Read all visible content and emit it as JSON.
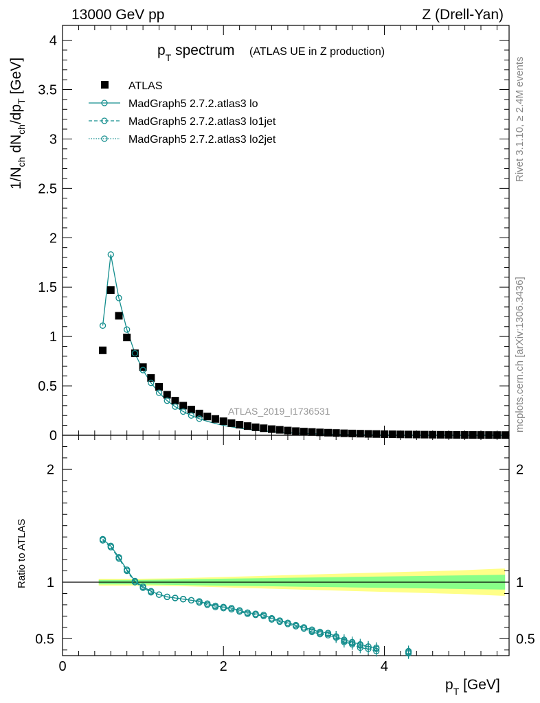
{
  "header": {
    "left": "13000 GeV pp",
    "right": "Z (Drell-Yan)"
  },
  "title": {
    "main_p": "p",
    "main_sub": "T",
    "main_rest": " spectrum",
    "small": "(ATLAS UE in Z production)"
  },
  "side_labels": {
    "rivet": "Rivet 3.1.10, ≥ 2.4M events",
    "mcplots": "mcplots.cern.ch [arXiv:1306.3436]"
  },
  "watermark": "ATLAS_2019_I1736531",
  "axes": {
    "ylabel_main": "1/N_ch dN_ch/dp_T [GeV]",
    "ylabel_ratio": "Ratio to ATLAS",
    "xlabel": "p_T [GeV]",
    "main_ylim": [
      0,
      4.15
    ],
    "main_yticks": [
      "0",
      "0.5",
      "1",
      "1.5",
      "2",
      "2.5",
      "3",
      "3.5",
      "4"
    ],
    "ratio_ylim": [
      0.35,
      2.3
    ],
    "ratio_yticks": [
      "0.5",
      "1",
      "2"
    ],
    "xlim": [
      0,
      5.55
    ],
    "xticks": [
      "0",
      "2",
      "4"
    ]
  },
  "legend": [
    {
      "key": "atlas",
      "label": "ATLAS"
    },
    {
      "key": "lo",
      "label": "MadGraph5 2.7.2.atlas3 lo"
    },
    {
      "key": "lo1jet",
      "label": "MadGraph5 2.7.2.atlas3 lo1jet"
    },
    {
      "key": "lo2jet",
      "label": "MadGraph5 2.7.2.atlas3 lo2jet"
    }
  ],
  "colors": {
    "atlas": "#000000",
    "mc": "#138d8d",
    "band_outer": "#ffff88",
    "band_inner": "#88ff88",
    "side_text": "#888888"
  },
  "chart_data": {
    "type": "scatter",
    "x": [
      0.5,
      0.6,
      0.7,
      0.8,
      0.9,
      1.0,
      1.1,
      1.2,
      1.3,
      1.4,
      1.5,
      1.6,
      1.7,
      1.8,
      1.9,
      2.0,
      2.1,
      2.2,
      2.3,
      2.4,
      2.5,
      2.6,
      2.7,
      2.8,
      2.9,
      3.0,
      3.1,
      3.2,
      3.3,
      3.4,
      3.5,
      3.6,
      3.7,
      3.8,
      3.9,
      4.0,
      4.1,
      4.2,
      4.3,
      4.4,
      4.5,
      4.6,
      4.7,
      4.8,
      4.9,
      5.0,
      5.1,
      5.2,
      5.3,
      5.4,
      5.5
    ],
    "series": [
      {
        "name": "ATLAS",
        "values": [
          0.86,
          1.47,
          1.21,
          0.99,
          0.83,
          0.69,
          0.58,
          0.49,
          0.41,
          0.35,
          0.3,
          0.26,
          0.22,
          0.19,
          0.165,
          0.142,
          0.123,
          0.107,
          0.093,
          0.081,
          0.071,
          0.062,
          0.055,
          0.048,
          0.042,
          0.037,
          0.033,
          0.029,
          0.026,
          0.023,
          0.02,
          0.018,
          0.016,
          0.014,
          0.0125,
          0.011,
          0.0098,
          0.0087,
          0.0078,
          0.007,
          0.0062,
          0.0056,
          0.005,
          0.0045,
          0.004,
          0.0036,
          0.0032,
          0.0029,
          0.0026,
          0.0023,
          0.0021
        ]
      },
      {
        "name": "MadGraph5 2.7.2.atlas3 lo",
        "values": [
          1.11,
          1.83,
          1.39,
          1.07,
          0.83,
          0.66,
          0.53,
          0.43,
          0.35,
          0.29,
          0.24,
          0.2,
          0.168,
          0.141,
          0.119,
          0.1,
          0.085,
          0.072,
          0.061,
          0.052,
          0.044,
          0.037,
          0.031,
          0.026,
          0.022,
          0.019,
          0.016,
          0.0135,
          0.0113,
          0.0095,
          0.008,
          0.0067,
          0.0056,
          0.0047,
          0.004,
          0.0034,
          0.0029,
          0.0024,
          0.002,
          0.0017,
          0.0014,
          0.0012,
          0.001,
          0.0008,
          0.0007,
          0.0006,
          0.0005,
          0.0004,
          0.0004,
          0.0003,
          0.0003
        ]
      }
    ],
    "ratio": {
      "x": [
        0.5,
        0.6,
        0.7,
        0.8,
        0.9,
        1.0,
        1.1,
        1.2,
        1.3,
        1.4,
        1.5,
        1.6,
        1.7,
        1.8,
        1.9,
        2.0,
        2.1,
        2.2,
        2.3,
        2.4,
        2.5,
        2.6,
        2.7,
        2.8,
        2.9,
        3.0,
        3.1,
        3.2,
        3.3,
        3.4,
        3.5,
        3.6,
        3.7,
        3.8,
        3.9,
        4.3
      ],
      "lo": [
        1.38,
        1.32,
        1.22,
        1.11,
        1.01,
        0.96,
        0.92,
        0.89,
        0.87,
        0.86,
        0.85,
        0.84,
        0.83,
        0.81,
        0.79,
        0.78,
        0.77,
        0.75,
        0.73,
        0.72,
        0.71,
        0.68,
        0.66,
        0.64,
        0.62,
        0.6,
        0.58,
        0.56,
        0.55,
        0.52,
        0.49,
        0.47,
        0.45,
        0.43,
        0.42,
        0.38
      ],
      "lo1jet": [
        1.37,
        1.31,
        1.21,
        1.1,
        1.0,
        0.95,
        0.91,
        0.89,
        0.87,
        0.86,
        0.85,
        0.84,
        0.83,
        0.8,
        0.78,
        0.77,
        0.76,
        0.74,
        0.72,
        0.71,
        0.7,
        0.67,
        0.65,
        0.63,
        0.61,
        0.59,
        0.56,
        0.54,
        0.53,
        0.51,
        0.47,
        0.45,
        0.42,
        0.41,
        0.39,
        0.37
      ],
      "lo2jet": [
        1.38,
        1.32,
        1.22,
        1.11,
        1.01,
        0.96,
        0.92,
        0.89,
        0.87,
        0.86,
        0.85,
        0.84,
        0.82,
        0.81,
        0.79,
        0.78,
        0.77,
        0.75,
        0.73,
        0.72,
        0.71,
        0.68,
        0.66,
        0.64,
        0.62,
        0.6,
        0.57,
        0.55,
        0.54,
        0.52,
        0.48,
        0.46,
        0.44,
        0.43,
        0.41,
        0.39
      ],
      "band_x": [
        0.5,
        1.0,
        1.5,
        2.0,
        2.5,
        3.0,
        3.5,
        4.0,
        4.5,
        5.0,
        5.5
      ],
      "band_inner": [
        0.02,
        0.02,
        0.025,
        0.03,
        0.035,
        0.04,
        0.045,
        0.05,
        0.055,
        0.06,
        0.065
      ],
      "band_outer": [
        0.03,
        0.03,
        0.035,
        0.045,
        0.055,
        0.065,
        0.075,
        0.085,
        0.095,
        0.105,
        0.12
      ]
    }
  }
}
